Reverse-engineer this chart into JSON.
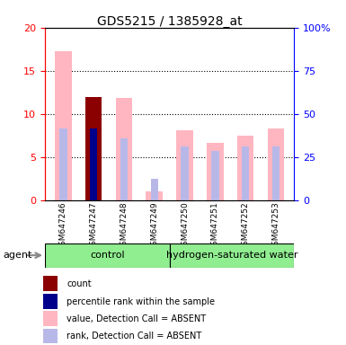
{
  "title": "GDS5215 / 1385928_at",
  "samples": [
    "GSM647246",
    "GSM647247",
    "GSM647248",
    "GSM647249",
    "GSM647250",
    "GSM647251",
    "GSM647252",
    "GSM647253"
  ],
  "value_absent": [
    17.3,
    null,
    11.8,
    1.0,
    8.1,
    6.6,
    7.5,
    8.3
  ],
  "rank_absent": [
    8.3,
    null,
    7.2,
    2.5,
    6.2,
    5.7,
    6.2,
    6.2
  ],
  "count_present": [
    null,
    12.0,
    null,
    null,
    null,
    null,
    null,
    null
  ],
  "percentile_present": [
    null,
    8.3,
    null,
    null,
    null,
    null,
    null,
    null
  ],
  "ylim_left": [
    0,
    20
  ],
  "ylim_right": [
    0,
    100
  ],
  "yticks_left": [
    0,
    5,
    10,
    15,
    20
  ],
  "yticks_right": [
    0,
    25,
    50,
    75,
    100
  ],
  "ytick_right_labels": [
    "0",
    "25",
    "50",
    "75",
    "100%"
  ],
  "color_count": "#8B0000",
  "color_percentile": "#00008B",
  "color_value_absent": "#FFB6C1",
  "color_rank_absent": "#B8B8E8",
  "legend_items": [
    {
      "label": "count",
      "color": "#8B0000"
    },
    {
      "label": "percentile rank within the sample",
      "color": "#00008B"
    },
    {
      "label": "value, Detection Call = ABSENT",
      "color": "#FFB6C1"
    },
    {
      "label": "rank, Detection Call = ABSENT",
      "color": "#B8B8E8"
    }
  ],
  "control_count": 4,
  "n_samples": 8,
  "group_label_control": "control",
  "group_label_hydrogen": "hydrogen-saturated water",
  "agent_label": "agent"
}
